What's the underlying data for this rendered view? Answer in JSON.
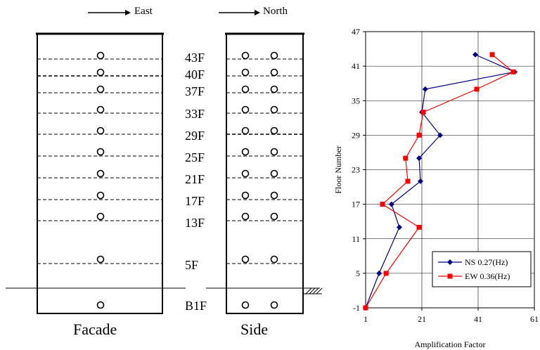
{
  "diagram": {
    "facade_direction": "East",
    "side_direction": "North",
    "facade_caption": "Facade",
    "side_caption": "Side",
    "floor_labels": [
      "43F",
      "40F",
      "37F",
      "33F",
      "29F",
      "25F",
      "21F",
      "17F",
      "13F",
      "5F",
      "B1F"
    ]
  },
  "chart_data": {
    "type": "line",
    "xlabel": "Amplification Factor",
    "ylabel": "Floor Number",
    "xlim": [
      1,
      61
    ],
    "ylim": [
      -1,
      47
    ],
    "xticks": [
      "1",
      "21",
      "41",
      "61"
    ],
    "yticks": [
      "-1",
      "5",
      "11",
      "17",
      "23",
      "29",
      "35",
      "41",
      "47"
    ],
    "legend_position": "bottom-right",
    "series": [
      {
        "name": "NS 0.27(Hz)",
        "color": "#000080",
        "marker": "diamond",
        "points": [
          [
            1,
            -1
          ],
          [
            5.8,
            5
          ],
          [
            13,
            13
          ],
          [
            10.2,
            17
          ],
          [
            20.5,
            21
          ],
          [
            20,
            25
          ],
          [
            27.5,
            29
          ],
          [
            21,
            33
          ],
          [
            22.2,
            37
          ],
          [
            54,
            40
          ],
          [
            40,
            43
          ]
        ]
      },
      {
        "name": "EW 0.36(Hz)",
        "color": "#ff0000",
        "marker": "square",
        "points": [
          [
            1,
            -1
          ],
          [
            8.3,
            5
          ],
          [
            20,
            13
          ],
          [
            7,
            17
          ],
          [
            16,
            21
          ],
          [
            15.2,
            25
          ],
          [
            20,
            29
          ],
          [
            21.5,
            33
          ],
          [
            40.5,
            37
          ],
          [
            53.5,
            40
          ],
          [
            46,
            43
          ]
        ]
      }
    ]
  }
}
